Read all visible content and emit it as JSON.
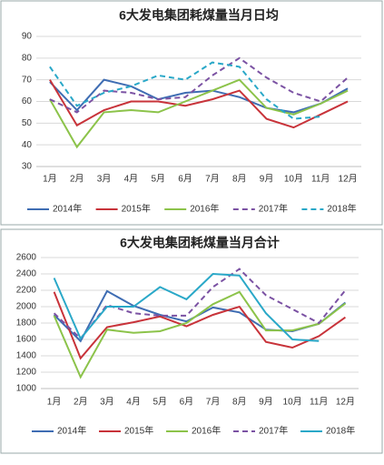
{
  "chart_data": [
    {
      "type": "line",
      "title": "6大发电集团耗煤量当月日均",
      "categories": [
        "1月",
        "2月",
        "3月",
        "4月",
        "5月",
        "6月",
        "7月",
        "8月",
        "9月",
        "10月",
        "11月",
        "12月"
      ],
      "ylim": [
        30,
        90
      ],
      "yticks": [
        30,
        40,
        50,
        60,
        70,
        80,
        90
      ],
      "grid": true,
      "series": [
        {
          "name": "2014年",
          "color": "#3f6db3",
          "line_style": "solid",
          "values": [
            69,
            56,
            70,
            67,
            61,
            64,
            65,
            62,
            57,
            55,
            59,
            66
          ]
        },
        {
          "name": "2015年",
          "color": "#c8333a",
          "line_style": "solid",
          "values": [
            70,
            49,
            56,
            60,
            60,
            58,
            61,
            65,
            52,
            48,
            54,
            60
          ]
        },
        {
          "name": "2016年",
          "color": "#8cc34a",
          "line_style": "solid",
          "values": [
            61,
            39,
            55,
            56,
            55,
            60,
            65,
            70,
            57,
            54,
            59,
            65
          ]
        },
        {
          "name": "2017年",
          "color": "#7b52a3",
          "line_style": "dashed",
          "values": [
            61,
            55,
            65,
            64,
            61,
            62,
            72,
            80,
            71,
            64,
            60,
            71
          ]
        },
        {
          "name": "2018年",
          "color": "#2aa8c8",
          "line_style": "dashed",
          "values": [
            76,
            58,
            64,
            67,
            72,
            70,
            78,
            76,
            61,
            52,
            53,
            null
          ]
        }
      ]
    },
    {
      "type": "line",
      "title": "6大发电集团耗煤量当月合计",
      "categories": [
        "1月",
        "2月",
        "3月",
        "4月",
        "5月",
        "6月",
        "7月",
        "8月",
        "9月",
        "10月",
        "11月",
        "12月"
      ],
      "ylim": [
        1000,
        2600
      ],
      "yticks": [
        1000,
        1200,
        1400,
        1600,
        1800,
        2000,
        2200,
        2400,
        2600
      ],
      "grid": true,
      "series": [
        {
          "name": "2014年",
          "color": "#3f6db3",
          "line_style": "solid",
          "values": [
            1900,
            1580,
            2190,
            2010,
            1900,
            1820,
            1990,
            1930,
            1720,
            1700,
            1790,
            2050
          ]
        },
        {
          "name": "2015年",
          "color": "#c8333a",
          "line_style": "solid",
          "values": [
            2180,
            1370,
            1750,
            1810,
            1880,
            1760,
            1900,
            2000,
            1570,
            1500,
            1640,
            1870
          ]
        },
        {
          "name": "2016年",
          "color": "#8cc34a",
          "line_style": "solid",
          "values": [
            1890,
            1140,
            1720,
            1680,
            1700,
            1800,
            2030,
            2180,
            1710,
            1710,
            1790,
            2040
          ]
        },
        {
          "name": "2017年",
          "color": "#7b52a3",
          "line_style": "dashed",
          "values": [
            1920,
            1610,
            2020,
            1920,
            1890,
            1890,
            2240,
            2460,
            2140,
            1970,
            1800,
            2200
          ]
        },
        {
          "name": "2018年",
          "color": "#2aa8c8",
          "line_style": "solid",
          "values": [
            2350,
            1610,
            2000,
            2000,
            2240,
            2090,
            2400,
            2380,
            1920,
            1600,
            1580,
            null
          ]
        }
      ]
    }
  ]
}
